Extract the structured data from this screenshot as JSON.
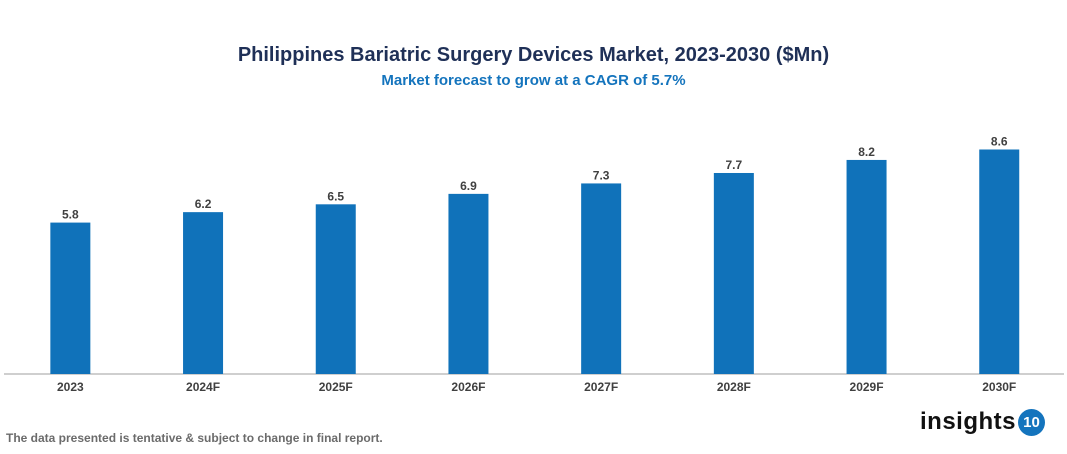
{
  "chart_data": {
    "type": "bar",
    "title": "Philippines Bariatric Surgery Devices Market, 2023-2030 ($Mn)",
    "subtitle": "Market forecast to grow at a CAGR of 5.7%",
    "categories": [
      "2023",
      "2024F",
      "2025F",
      "2026F",
      "2027F",
      "2028F",
      "2029F",
      "2030F"
    ],
    "values": [
      5.8,
      6.2,
      6.5,
      6.9,
      7.3,
      7.7,
      8.2,
      8.6
    ],
    "xlabel": "",
    "ylabel": "",
    "ylim": [
      0,
      9.5
    ],
    "grid": false,
    "data_labels": true,
    "bar_color": "#1072ba"
  },
  "footer": {
    "note": "The data presented is tentative & subject to change in final report.",
    "logo_text": "insights",
    "logo_number": "10"
  }
}
